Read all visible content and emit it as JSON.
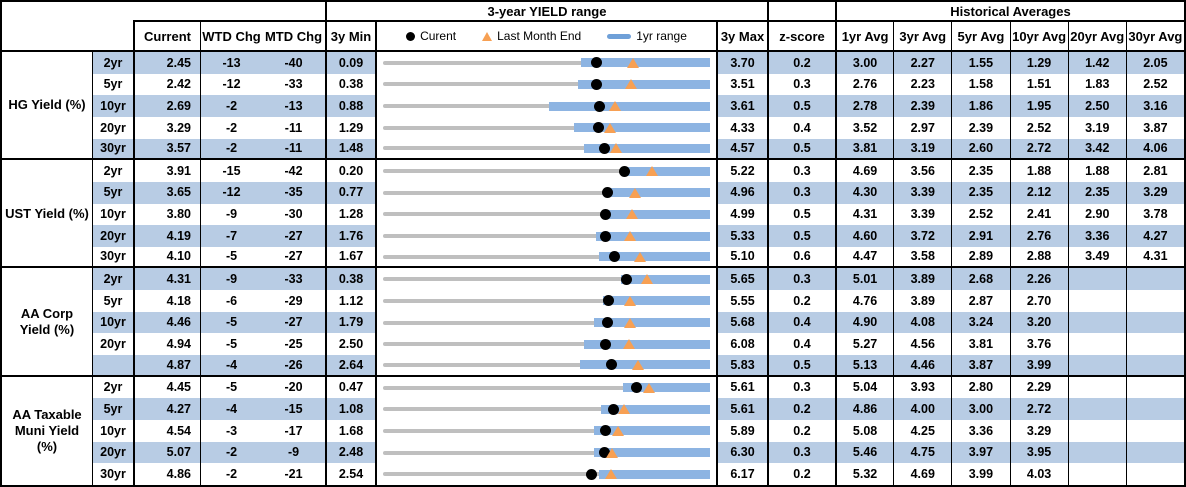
{
  "titles": {
    "chart": "3-year YIELD range",
    "historical": "Historical Averages"
  },
  "columns": {
    "current": "Current",
    "wtd": "WTD Chg",
    "mtd": "MTD Chg",
    "min3y": "3y Min",
    "max3y": "3y Max",
    "z": "z-score",
    "avgs": [
      "1yr Avg",
      "3yr Avg",
      "5yr Avg",
      "10yr Avg",
      "20yr Avg",
      "30yr Avg"
    ]
  },
  "legend": {
    "current": "Curent",
    "last_month_end": "Last Month End",
    "range_1yr": "1yr range"
  },
  "colors": {
    "row_shade": "#B8CCE4",
    "bar_1yr": "#8DB4E2",
    "legend_bar": "#6FA0D8",
    "range_line": "#BFBFBF",
    "dot": "#000000",
    "triangle": "#F7A053",
    "border": "#000000"
  },
  "chart_data": {
    "type": "table",
    "note": "Bullet-range chart per row: gray line spans 3y min..3y max, blue bar is 1yr range, black dot is current, orange triangle is last month end.",
    "groups": [
      {
        "label": "HG Yield (%)",
        "rows": [
          {
            "tenor": "2yr",
            "current": "2.45",
            "wtd": "-13",
            "mtd": "-40",
            "min": "0.09",
            "max": "3.70",
            "z": "0.2",
            "avgs": [
              "3.00",
              "2.27",
              "1.55",
              "1.29",
              "1.42",
              "2.05"
            ],
            "last_month_end": 2.85,
            "range_1yr_low": 2.28,
            "range_1yr_high": 3.7
          },
          {
            "tenor": "5yr",
            "current": "2.42",
            "wtd": "-12",
            "mtd": "-33",
            "min": "0.38",
            "max": "3.51",
            "z": "0.3",
            "avgs": [
              "2.76",
              "2.23",
              "1.58",
              "1.51",
              "1.83",
              "2.52"
            ],
            "last_month_end": 2.75,
            "range_1yr_low": 2.25,
            "range_1yr_high": 3.51
          },
          {
            "tenor": "10yr",
            "current": "2.69",
            "wtd": "-2",
            "mtd": "-13",
            "min": "0.88",
            "max": "3.61",
            "z": "0.5",
            "avgs": [
              "2.78",
              "2.39",
              "1.86",
              "1.95",
              "2.50",
              "3.16"
            ],
            "last_month_end": 2.82,
            "range_1yr_low": 2.27,
            "range_1yr_high": 3.61
          },
          {
            "tenor": "20yr",
            "current": "3.29",
            "wtd": "-2",
            "mtd": "-11",
            "min": "1.29",
            "max": "4.33",
            "z": "0.4",
            "avgs": [
              "3.52",
              "2.97",
              "2.39",
              "2.52",
              "3.19",
              "3.87"
            ],
            "last_month_end": 3.4,
            "range_1yr_low": 3.07,
            "range_1yr_high": 4.33
          },
          {
            "tenor": "30yr",
            "current": "3.57",
            "wtd": "-2",
            "mtd": "-11",
            "min": "1.48",
            "max": "4.57",
            "z": "0.5",
            "avgs": [
              "3.81",
              "3.19",
              "2.60",
              "2.72",
              "3.42",
              "4.06"
            ],
            "last_month_end": 3.68,
            "range_1yr_low": 3.38,
            "range_1yr_high": 4.57
          }
        ]
      },
      {
        "label": "UST Yield (%)",
        "rows": [
          {
            "tenor": "2yr",
            "current": "3.91",
            "wtd": "-15",
            "mtd": "-42",
            "min": "0.20",
            "max": "5.22",
            "z": "0.3",
            "avgs": [
              "4.69",
              "3.56",
              "2.35",
              "1.88",
              "1.88",
              "2.81"
            ],
            "last_month_end": 4.33,
            "range_1yr_low": 3.86,
            "range_1yr_high": 5.22
          },
          {
            "tenor": "5yr",
            "current": "3.65",
            "wtd": "-12",
            "mtd": "-35",
            "min": "0.77",
            "max": "4.96",
            "z": "0.3",
            "avgs": [
              "4.30",
              "3.39",
              "2.35",
              "2.12",
              "2.35",
              "3.29"
            ],
            "last_month_end": 4.0,
            "range_1yr_low": 3.69,
            "range_1yr_high": 4.96
          },
          {
            "tenor": "10yr",
            "current": "3.80",
            "wtd": "-9",
            "mtd": "-30",
            "min": "1.28",
            "max": "4.99",
            "z": "0.5",
            "avgs": [
              "4.31",
              "3.39",
              "2.52",
              "2.41",
              "2.90",
              "3.78"
            ],
            "last_month_end": 4.1,
            "range_1yr_low": 3.83,
            "range_1yr_high": 4.99
          },
          {
            "tenor": "20yr",
            "current": "4.19",
            "wtd": "-7",
            "mtd": "-27",
            "min": "1.76",
            "max": "5.33",
            "z": "0.5",
            "avgs": [
              "4.60",
              "3.72",
              "2.91",
              "2.76",
              "3.36",
              "4.27"
            ],
            "last_month_end": 4.46,
            "range_1yr_low": 4.09,
            "range_1yr_high": 5.33
          },
          {
            "tenor": "30yr",
            "current": "4.10",
            "wtd": "-5",
            "mtd": "-27",
            "min": "1.67",
            "max": "5.10",
            "z": "0.6",
            "avgs": [
              "4.47",
              "3.58",
              "2.89",
              "2.88",
              "3.49",
              "4.31"
            ],
            "last_month_end": 4.37,
            "range_1yr_low": 3.94,
            "range_1yr_high": 5.1
          }
        ]
      },
      {
        "label": "AA Corp Yield (%)",
        "rows": [
          {
            "tenor": "2yr",
            "current": "4.31",
            "wtd": "-9",
            "mtd": "-33",
            "min": "0.38",
            "max": "5.65",
            "z": "0.3",
            "avgs": [
              "5.01",
              "3.89",
              "2.68",
              "2.26",
              "",
              ""
            ],
            "last_month_end": 4.64,
            "range_1yr_low": 4.21,
            "range_1yr_high": 5.65
          },
          {
            "tenor": "5yr",
            "current": "4.18",
            "wtd": "-6",
            "mtd": "-29",
            "min": "1.12",
            "max": "5.55",
            "z": "0.2",
            "avgs": [
              "4.76",
              "3.89",
              "2.87",
              "2.70",
              "",
              ""
            ],
            "last_month_end": 4.47,
            "range_1yr_low": 4.1,
            "range_1yr_high": 5.55
          },
          {
            "tenor": "10yr",
            "current": "4.46",
            "wtd": "-5",
            "mtd": "-27",
            "min": "1.79",
            "max": "5.68",
            "z": "0.4",
            "avgs": [
              "4.90",
              "4.08",
              "3.24",
              "3.20",
              "",
              ""
            ],
            "last_month_end": 4.73,
            "range_1yr_low": 4.3,
            "range_1yr_high": 5.68
          },
          {
            "tenor": "20yr",
            "current": "4.94",
            "wtd": "-5",
            "mtd": "-25",
            "min": "2.50",
            "max": "6.08",
            "z": "0.4",
            "avgs": [
              "5.27",
              "4.56",
              "3.81",
              "3.76",
              "",
              ""
            ],
            "last_month_end": 5.19,
            "range_1yr_low": 4.7,
            "range_1yr_high": 6.08
          },
          {
            "tenor": "",
            "current": "4.87",
            "wtd": "-4",
            "mtd": "-26",
            "min": "2.64",
            "max": "5.83",
            "z": "0.5",
            "avgs": [
              "5.13",
              "4.46",
              "3.87",
              "3.99",
              "",
              ""
            ],
            "last_month_end": 5.13,
            "range_1yr_low": 4.56,
            "range_1yr_high": 5.83
          }
        ]
      },
      {
        "label": "AA Taxable Muni Yield (%)",
        "rows": [
          {
            "tenor": "2yr",
            "current": "4.45",
            "wtd": "-5",
            "mtd": "-20",
            "min": "0.47",
            "max": "5.61",
            "z": "0.3",
            "avgs": [
              "5.04",
              "3.93",
              "2.80",
              "2.29",
              "",
              ""
            ],
            "last_month_end": 4.65,
            "range_1yr_low": 4.25,
            "range_1yr_high": 5.61
          },
          {
            "tenor": "5yr",
            "current": "4.27",
            "wtd": "-4",
            "mtd": "-15",
            "min": "1.08",
            "max": "5.61",
            "z": "0.2",
            "avgs": [
              "4.86",
              "4.00",
              "3.00",
              "2.72",
              "",
              ""
            ],
            "last_month_end": 4.42,
            "range_1yr_low": 4.1,
            "range_1yr_high": 5.61
          },
          {
            "tenor": "10yr",
            "current": "4.54",
            "wtd": "-3",
            "mtd": "-17",
            "min": "1.68",
            "max": "5.89",
            "z": "0.2",
            "avgs": [
              "5.08",
              "4.25",
              "3.36",
              "3.29",
              "",
              ""
            ],
            "last_month_end": 4.71,
            "range_1yr_low": 4.4,
            "range_1yr_high": 5.89
          },
          {
            "tenor": "20yr",
            "current": "5.07",
            "wtd": "-2",
            "mtd": "-9",
            "min": "2.48",
            "max": "6.30",
            "z": "0.3",
            "avgs": [
              "5.46",
              "4.75",
              "3.97",
              "3.95",
              "",
              ""
            ],
            "last_month_end": 5.16,
            "range_1yr_low": 4.95,
            "range_1yr_high": 6.3
          },
          {
            "tenor": "30yr",
            "current": "4.86",
            "wtd": "-2",
            "mtd": "-21",
            "min": "2.54",
            "max": "6.17",
            "z": "0.2",
            "avgs": [
              "5.32",
              "4.69",
              "3.99",
              "4.03",
              "",
              ""
            ],
            "last_month_end": 5.07,
            "range_1yr_low": 4.94,
            "range_1yr_high": 6.17
          }
        ]
      }
    ]
  }
}
